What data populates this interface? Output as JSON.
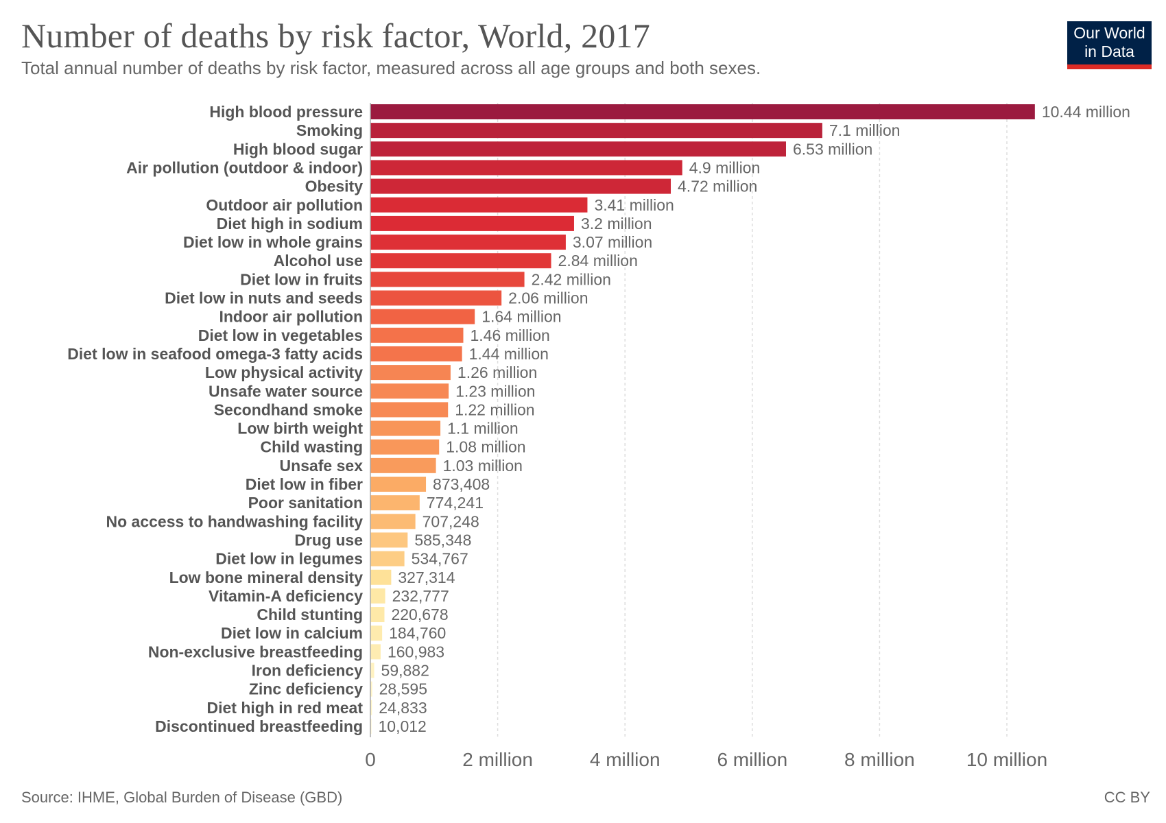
{
  "header": {
    "title": "Number of deaths by risk factor, World, 2017",
    "subtitle": "Total annual number of deaths by risk factor, measured across all age groups and both sexes."
  },
  "logo": {
    "line1": "Our World",
    "line2": "in Data"
  },
  "footer": {
    "source": "Source: IHME, Global Burden of Disease (GBD)",
    "license": "CC BY"
  },
  "colors": {
    "scale_high": "#9b1a3f",
    "scale_mid_high": "#dc2b35",
    "scale_mid": "#f26444",
    "scale_mid_low": "#fba862",
    "scale_low": "#fee49b",
    "scale_lowest": "#fff6cc",
    "grid": "#dddddd",
    "value_label": "#666666",
    "category_label": "#555555",
    "axis_line": "#aaaaaa"
  },
  "chart_data": {
    "type": "bar",
    "orientation": "horizontal",
    "grid": true,
    "xlim": [
      0,
      10440000
    ],
    "categories": [
      "High blood pressure",
      "Smoking",
      "High blood sugar",
      "Air pollution (outdoor & indoor)",
      "Obesity",
      "Outdoor air pollution",
      "Diet high in sodium",
      "Diet low in whole grains",
      "Alcohol use",
      "Diet low in fruits",
      "Diet low in nuts and seeds",
      "Indoor air pollution",
      "Diet low in vegetables",
      "Diet low in seafood omega-3 fatty acids",
      "Low physical activity",
      "Unsafe water source",
      "Secondhand smoke",
      "Low birth weight",
      "Child wasting",
      "Unsafe sex",
      "Diet low in fiber",
      "Poor sanitation",
      "No access to handwashing facility",
      "Drug use",
      "Diet low in legumes",
      "Low bone mineral density",
      "Vitamin-A deficiency",
      "Child stunting",
      "Diet low in calcium",
      "Non-exclusive breastfeeding",
      "Iron deficiency",
      "Zinc deficiency",
      "Diet high in red meat",
      "Discontinued breastfeeding"
    ],
    "values": [
      10440000,
      7100000,
      6530000,
      4900000,
      4720000,
      3410000,
      3200000,
      3070000,
      2840000,
      2420000,
      2060000,
      1640000,
      1460000,
      1440000,
      1260000,
      1230000,
      1220000,
      1100000,
      1080000,
      1030000,
      873408,
      774241,
      707248,
      585348,
      534767,
      327314,
      232777,
      220678,
      184760,
      160983,
      59882,
      28595,
      24833,
      10012
    ],
    "value_labels": [
      "10.44 million",
      "7.1 million",
      "6.53 million",
      "4.9 million",
      "4.72 million",
      "3.41 million",
      "3.2 million",
      "3.07 million",
      "2.84 million",
      "2.42 million",
      "2.06 million",
      "1.64 million",
      "1.46 million",
      "1.44 million",
      "1.26 million",
      "1.23 million",
      "1.22 million",
      "1.1 million",
      "1.08 million",
      "1.03 million",
      "873,408",
      "774,241",
      "707,248",
      "585,348",
      "534,767",
      "327,314",
      "232,777",
      "220,678",
      "184,760",
      "160,983",
      "59,882",
      "28,595",
      "24,833",
      "10,012"
    ],
    "x_ticks": [
      0,
      2000000,
      4000000,
      6000000,
      8000000,
      10000000
    ],
    "x_tick_labels": [
      "0",
      "2 million",
      "4 million",
      "6 million",
      "8 million",
      "10 million"
    ]
  }
}
